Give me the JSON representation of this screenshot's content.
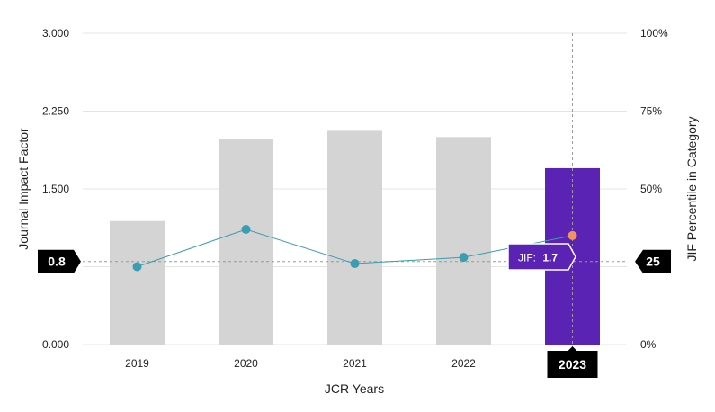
{
  "chart_data": {
    "type": "bar",
    "categories": [
      "2019",
      "2020",
      "2021",
      "2022",
      "2023"
    ],
    "highlighted_category": "2023",
    "series": [
      {
        "name": "Journal Impact Factor",
        "type": "bar",
        "axis": "left",
        "values": [
          1.19,
          1.98,
          2.06,
          2.0,
          1.7
        ]
      },
      {
        "name": "JIF Percentile in Category",
        "type": "line",
        "axis": "right",
        "values": [
          25,
          37,
          26,
          28,
          35
        ]
      }
    ],
    "xlabel": "JCR Years",
    "ylabel": "Journal Impact Factor",
    "y2label": "JIF Percentile in Category",
    "ylim": [
      0,
      3
    ],
    "y2lim": [
      0,
      100
    ],
    "yticks": [
      "0.000",
      "0.750",
      "1.500",
      "2.250",
      "3.000"
    ],
    "y2ticks": [
      "0%",
      "25%",
      "50%",
      "75%",
      "100%"
    ],
    "reference_left_label": "0.8",
    "reference_left_value": 0.8,
    "reference_right_label": "25",
    "tooltip": {
      "label": "JIF:",
      "value": "1.7"
    },
    "grid": true,
    "colors": {
      "bar": "#d3d4d3",
      "bar_highlight": "#5a23b3",
      "line": "#3a9db1",
      "point": "#3a9db1",
      "point_highlight": "#f2935b",
      "tooltip_bg": "#5a23b3",
      "flag_bg": "#000000",
      "grid": "#e4e4e4",
      "reference": "#9a9a9a"
    }
  }
}
